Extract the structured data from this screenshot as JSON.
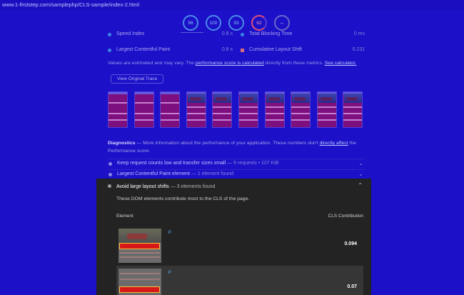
{
  "url": "www.1-firststep.com/samplephp/CLS-sample/index-2.html",
  "gauges": [
    {
      "label": "98",
      "kind": "good"
    },
    {
      "label": "100",
      "kind": "good"
    },
    {
      "label": "93",
      "kind": "good"
    },
    {
      "label": "62",
      "kind": "warn"
    },
    {
      "label": "–",
      "kind": "pwa"
    }
  ],
  "metrics": {
    "speed_index": {
      "label": "Speed Index",
      "value": "0.8 s"
    },
    "total_blocking_time": {
      "label": "Total Blocking Time",
      "value": "0 ms"
    },
    "lcp": {
      "label": "Largest Contentful Paint",
      "value": "0.8 s"
    },
    "cls": {
      "label": "Cumulative Layout Shift",
      "value": "0.231"
    }
  },
  "note": {
    "prefix": "Values are estimated and may vary. The ",
    "link1": "performance score is calculated",
    "middle": " directly from these metrics. ",
    "link2": "See calculator."
  },
  "view_trace_label": "View Original Trace",
  "filmstrip_frames": [
    {
      "state": "plain"
    },
    {
      "state": "plain"
    },
    {
      "state": "plain"
    },
    {
      "state": "image"
    },
    {
      "state": "image"
    },
    {
      "state": "image"
    },
    {
      "state": "image"
    },
    {
      "state": "image"
    },
    {
      "state": "image"
    },
    {
      "state": "image"
    }
  ],
  "diagnostics": {
    "title": "Diagnostics",
    "text": " — More information about the performance of your application. These numbers don't ",
    "link": "directly affect",
    "text2": " the Performance score."
  },
  "audits": [
    {
      "label": "Keep request counts low and transfer sizes small",
      "meta": " — 9 requests • 107 KiB"
    },
    {
      "label": "Largest Contentful Paint element",
      "meta": " — 1 element found"
    }
  ],
  "panel": {
    "title": "Avoid large layout shifts",
    "meta": " — 3 elements found",
    "description": "These DOM elements contribute most to the CLS of the page.",
    "col_element": "Element",
    "col_cls": "CLS Contribution",
    "rows": [
      {
        "tag": "p",
        "value": "0.094"
      },
      {
        "tag": "p",
        "value": "0.07"
      }
    ]
  },
  "colors": {
    "background": "#1c10c8",
    "panel": "#232323",
    "good": "#4a8ce8",
    "warn": "#e0507a"
  }
}
